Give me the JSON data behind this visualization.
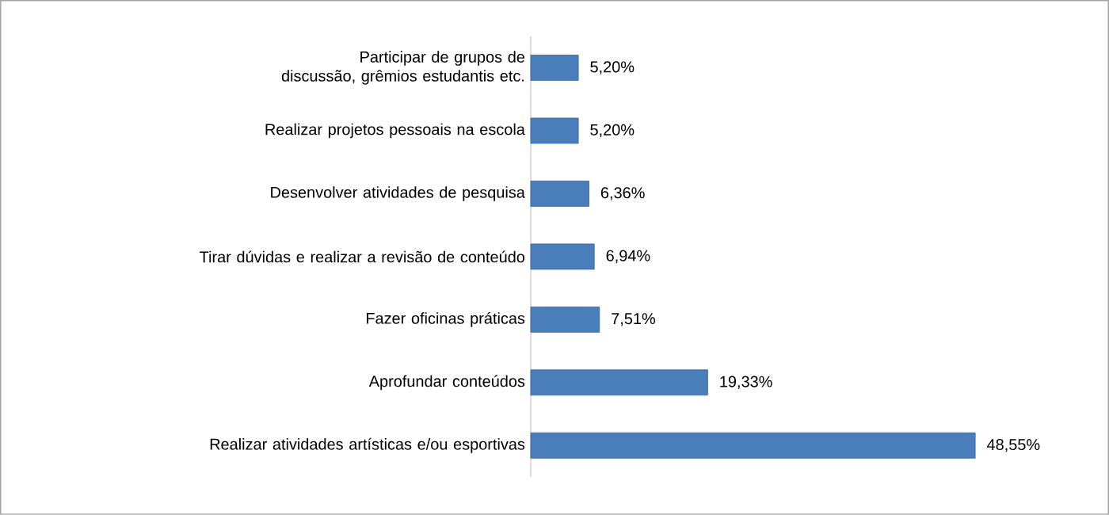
{
  "chart_data": {
    "type": "bar",
    "orientation": "horizontal",
    "categories": [
      "Participar de grupos de discussão, grêmios estudantis etc.",
      "Realizar projetos pessoais na escola",
      "Desenvolver atividades de pesquisa",
      "Tirar dúvidas e realizar a revisão de conteúdo",
      "Fazer oficinas práticas",
      "Aprofundar conteúdos",
      "Realizar atividades artísticas e/ou esportivas"
    ],
    "values": [
      5.2,
      5.2,
      6.36,
      6.94,
      7.51,
      19.33,
      48.55
    ],
    "value_labels": [
      "5,20%",
      "5,20%",
      "6,36%",
      "6,94%",
      "7,51%",
      "19,33%",
      "48,55%"
    ],
    "color": "#4a7ebb"
  }
}
